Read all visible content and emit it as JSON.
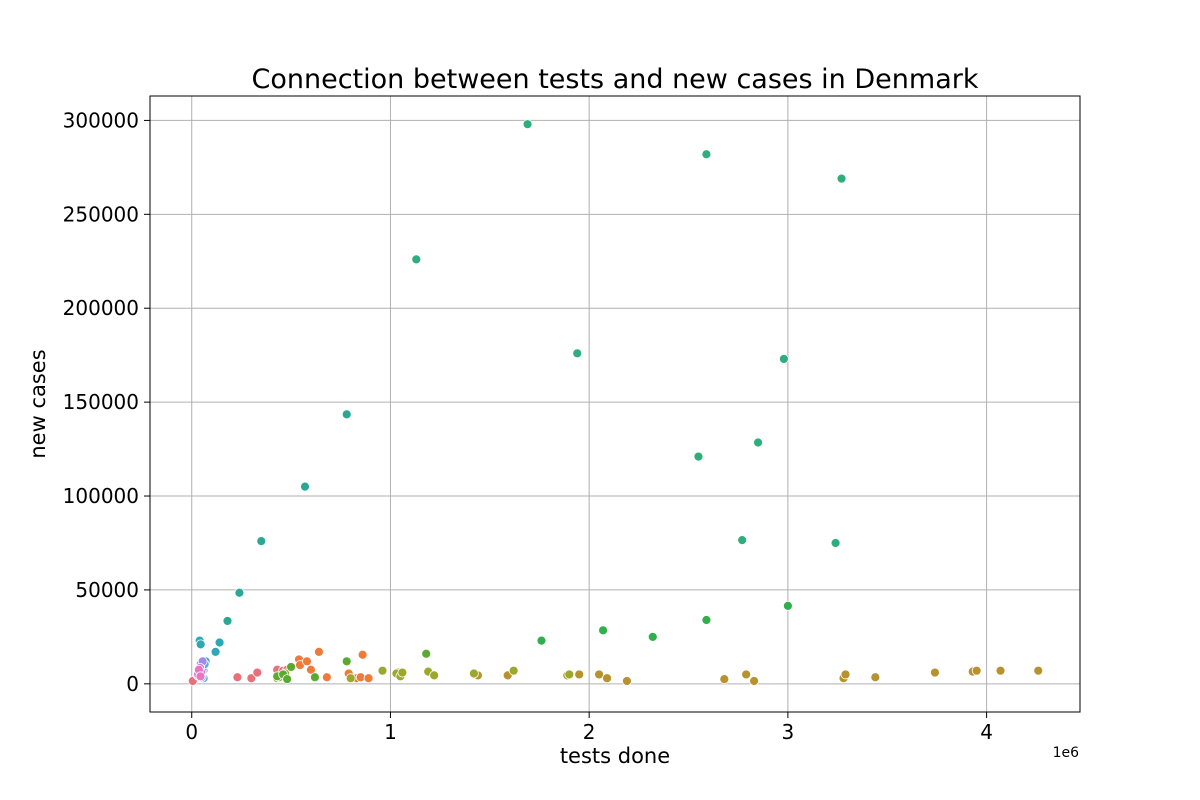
{
  "chart_data": {
    "type": "scatter",
    "title": "Connection between tests and new cases in Denmark",
    "xlabel": "tests done",
    "ylabel": "new cases",
    "x_offset_label": "1e6",
    "xlim": [
      -210000,
      4470000
    ],
    "ylim": [
      -15000,
      313000
    ],
    "x_ticks": [
      0,
      1000000,
      2000000,
      3000000,
      4000000
    ],
    "x_tick_labels": [
      "0",
      "1",
      "2",
      "3",
      "4"
    ],
    "y_ticks": [
      0,
      50000,
      100000,
      150000,
      200000,
      250000,
      300000
    ],
    "y_tick_labels": [
      "0",
      "50000",
      "100000",
      "150000",
      "200000",
      "250000",
      "300000"
    ],
    "grid": true,
    "legend": false,
    "series": [
      {
        "color": "#e8707a",
        "x": [
          5000,
          230000,
          300000,
          330000,
          430000,
          460000,
          480000
        ],
        "y": [
          1500,
          3500,
          3000,
          6000,
          7500,
          7000,
          7500
        ]
      },
      {
        "color": "#f07a3a",
        "x": [
          540000,
          545000,
          580000,
          600000,
          640000,
          680000,
          790000,
          830000,
          850000,
          860000,
          890000
        ],
        "y": [
          13000,
          10000,
          12000,
          7500,
          17000,
          3500,
          5500,
          3000,
          3500,
          15500,
          3000
        ]
      },
      {
        "color": "#b8922e",
        "x": [
          1040000,
          1440000,
          1590000,
          1890000,
          1950000,
          2050000,
          2090000,
          2190000,
          2680000,
          2790000,
          2830000,
          3280000,
          3290000,
          3440000,
          3740000,
          3930000,
          3950000,
          4070000,
          4260000
        ],
        "y": [
          6000,
          4500,
          4500,
          4500,
          5000,
          5000,
          3000,
          1500,
          2500,
          5000,
          1500,
          3000,
          5000,
          3500,
          6000,
          6500,
          7000,
          7000,
          7000
        ]
      },
      {
        "color": "#9aa82c",
        "x": [
          430000,
          440000,
          470000,
          800000,
          960000,
          1030000,
          1050000,
          1060000,
          1190000,
          1220000,
          1420000,
          1620000,
          1900000
        ],
        "y": [
          3000,
          3500,
          5500,
          3000,
          7000,
          5500,
          4000,
          6000,
          6500,
          4500,
          5500,
          7000,
          5000
        ]
      },
      {
        "color": "#5aaa32",
        "x": [
          430000,
          460000,
          480000,
          500000,
          620000,
          780000,
          1180000
        ],
        "y": [
          4000,
          5000,
          2500,
          9000,
          3500,
          12000,
          16000
        ]
      },
      {
        "color": "#30b04a",
        "x": [
          1760000,
          2070000,
          2320000,
          2590000,
          3000000
        ],
        "y": [
          23000,
          28500,
          25000,
          34000,
          41500
        ]
      },
      {
        "color": "#2eae7c",
        "x": [
          1130000,
          1690000,
          1940000,
          2550000,
          2590000,
          2770000,
          2850000,
          2980000,
          3240000,
          3270000
        ],
        "y": [
          226000,
          298000,
          176000,
          121000,
          282000,
          76500,
          128500,
          173000,
          75000,
          269000
        ]
      },
      {
        "color": "#2aa894",
        "x": [
          180000,
          240000,
          350000,
          570000,
          780000
        ],
        "y": [
          33500,
          48500,
          76000,
          105000,
          143500
        ]
      },
      {
        "color": "#2ea8b4",
        "x": [
          40000,
          45000,
          50000,
          60000,
          70000,
          120000,
          140000
        ],
        "y": [
          23000,
          21000,
          11000,
          7500,
          12000,
          17000,
          22000
        ]
      },
      {
        "color": "#5aa8e0",
        "x": [
          35000,
          40000,
          50000,
          55000,
          60000,
          65000
        ],
        "y": [
          6000,
          9000,
          5500,
          8000,
          3000,
          10500
        ]
      },
      {
        "color": "#9b8cf0",
        "x": [
          30000,
          38000,
          45000,
          50000,
          55000
        ],
        "y": [
          4500,
          7000,
          10500,
          3500,
          12000
        ]
      },
      {
        "color": "#d27be8",
        "x": [
          32000,
          42000,
          48000
        ],
        "y": [
          5000,
          8500,
          6000
        ]
      },
      {
        "color": "#ec74c0",
        "x": [
          36000,
          44000
        ],
        "y": [
          7500,
          4000
        ]
      }
    ]
  }
}
